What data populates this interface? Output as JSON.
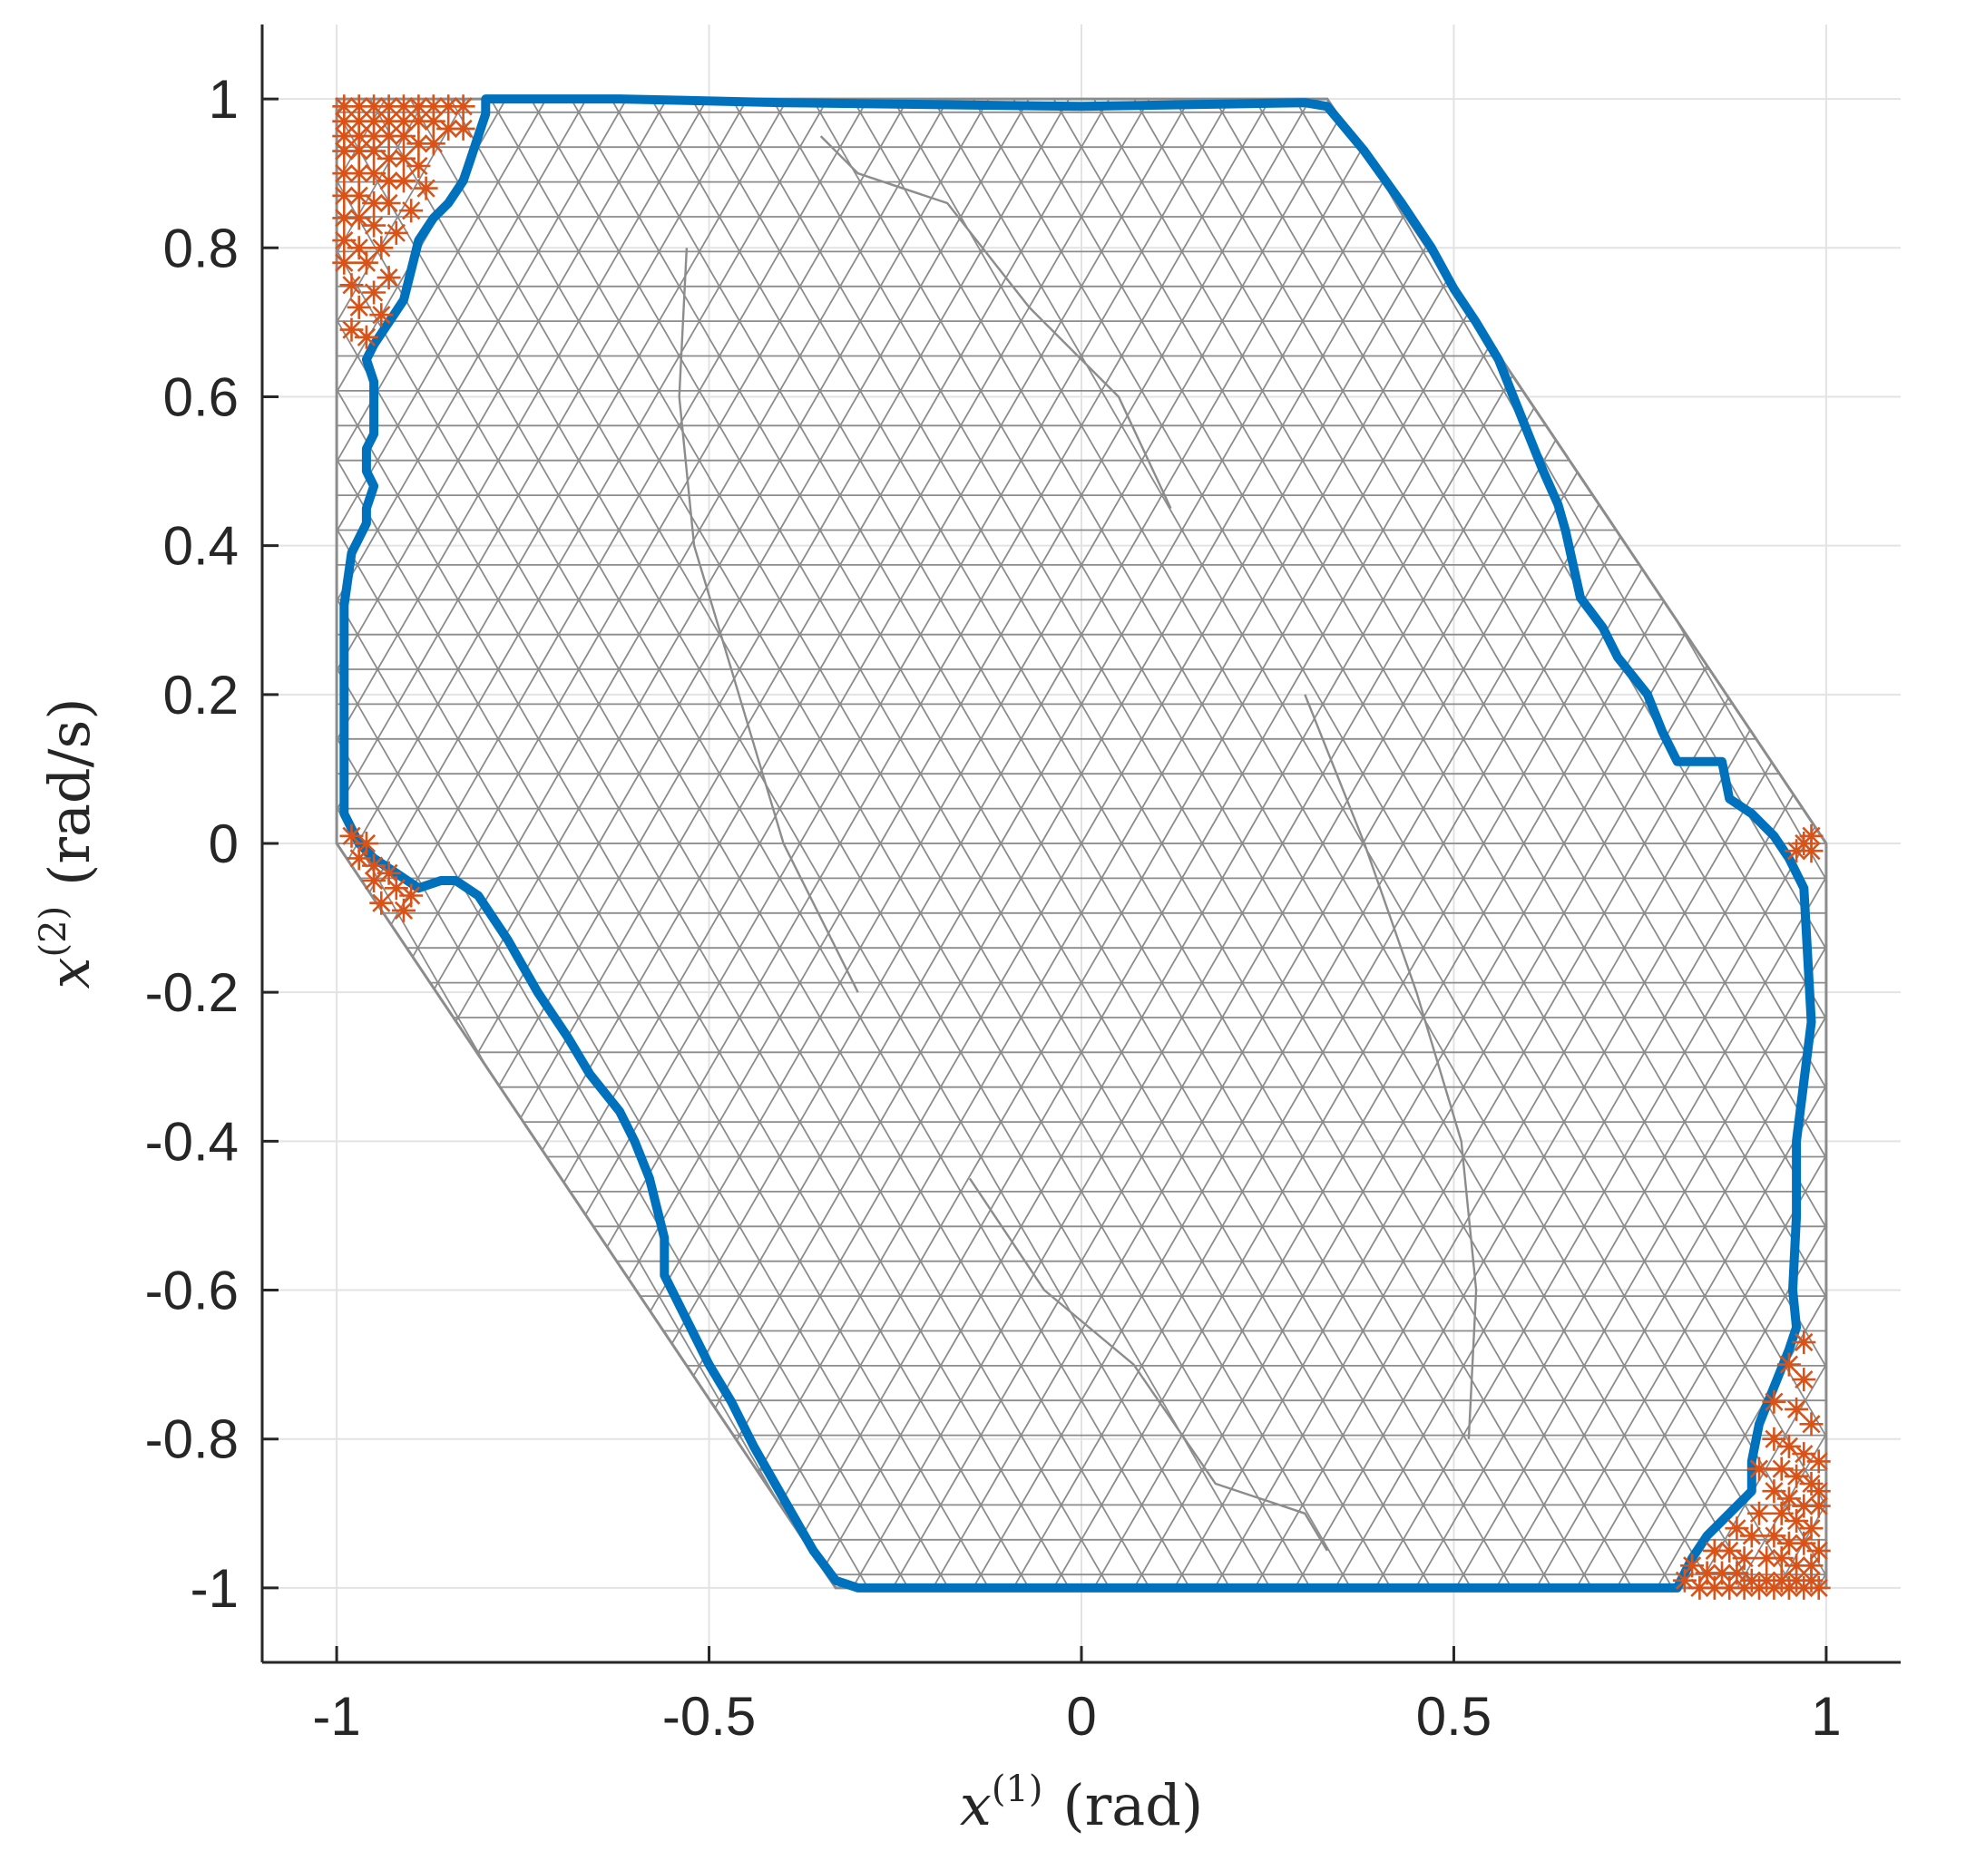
{
  "chart_data": {
    "type": "scatter",
    "xlabel": {
      "var": "x",
      "sup": "(1)",
      "unit": "(rad)"
    },
    "ylabel": {
      "var": "x",
      "sup": "(2)",
      "unit": "(rad/s)"
    },
    "xlim": [
      -1.1,
      1.1
    ],
    "ylim": [
      -1.1,
      1.1
    ],
    "xticks": [
      -1,
      -0.5,
      0,
      0.5,
      1
    ],
    "xtick_labels": [
      "-1",
      "-0.5",
      "0",
      "0.5",
      "1"
    ],
    "yticks": [
      1,
      0.8,
      0.6,
      0.4,
      0.2,
      0,
      -0.2,
      -0.4,
      -0.6,
      -0.8,
      -1
    ],
    "ytick_labels": [
      "1",
      "0.8",
      "0.6",
      "0.4",
      "0.2",
      "0",
      "-0.2",
      "-0.4",
      "-0.6",
      "-0.8",
      "-1"
    ],
    "grid": true,
    "colors": {
      "mesh": "#8c8c8c",
      "boundary": "#0072bd",
      "markers": "#d95319",
      "axis": "#262626",
      "grid": "#e3e3e3"
    },
    "mesh_region": [
      [
        -1,
        1
      ],
      [
        0.33,
        1
      ],
      [
        1,
        0
      ],
      [
        1,
        -1
      ],
      [
        -0.33,
        -1
      ],
      [
        -1,
        0
      ]
    ],
    "boundary": [
      [
        -0.8,
        1.0
      ],
      [
        -0.75,
        1.0
      ],
      [
        -0.62,
        1.0
      ],
      [
        -0.4,
        0.995
      ],
      [
        0.0,
        0.99
      ],
      [
        0.3,
        0.995
      ],
      [
        0.33,
        0.99
      ],
      [
        0.38,
        0.93
      ],
      [
        0.43,
        0.86
      ],
      [
        0.47,
        0.8
      ],
      [
        0.5,
        0.745
      ],
      [
        0.53,
        0.7
      ],
      [
        0.56,
        0.65
      ],
      [
        0.58,
        0.6
      ],
      [
        0.6,
        0.55
      ],
      [
        0.62,
        0.5
      ],
      [
        0.64,
        0.455
      ],
      [
        0.65,
        0.42
      ],
      [
        0.66,
        0.375
      ],
      [
        0.67,
        0.33
      ],
      [
        0.7,
        0.29
      ],
      [
        0.72,
        0.25
      ],
      [
        0.76,
        0.2
      ],
      [
        0.78,
        0.15
      ],
      [
        0.8,
        0.11
      ],
      [
        0.86,
        0.11
      ],
      [
        0.87,
        0.06
      ],
      [
        0.9,
        0.04
      ],
      [
        0.93,
        0.01
      ],
      [
        0.95,
        -0.02
      ],
      [
        0.97,
        -0.06
      ],
      [
        0.975,
        -0.15
      ],
      [
        0.98,
        -0.24
      ],
      [
        0.97,
        -0.32
      ],
      [
        0.96,
        -0.4
      ],
      [
        0.96,
        -0.5
      ],
      [
        0.955,
        -0.6
      ],
      [
        0.96,
        -0.65
      ],
      [
        0.95,
        -0.68
      ],
      [
        0.93,
        -0.73
      ],
      [
        0.91,
        -0.78
      ],
      [
        0.9,
        -0.83
      ],
      [
        0.9,
        -0.87
      ],
      [
        0.87,
        -0.9
      ],
      [
        0.84,
        -0.93
      ],
      [
        0.82,
        -0.96
      ],
      [
        0.8,
        -1.0
      ],
      [
        0.5,
        -1.0
      ],
      [
        0.0,
        -1.0
      ],
      [
        -0.3,
        -1.0
      ],
      [
        -0.33,
        -0.99
      ],
      [
        -0.36,
        -0.95
      ],
      [
        -0.4,
        -0.88
      ],
      [
        -0.44,
        -0.81
      ],
      [
        -0.47,
        -0.75
      ],
      [
        -0.5,
        -0.7
      ],
      [
        -0.53,
        -0.64
      ],
      [
        -0.56,
        -0.58
      ],
      [
        -0.56,
        -0.53
      ],
      [
        -0.58,
        -0.45
      ],
      [
        -0.6,
        -0.4
      ],
      [
        -0.62,
        -0.36
      ],
      [
        -0.66,
        -0.31
      ],
      [
        -0.69,
        -0.26
      ],
      [
        -0.73,
        -0.2
      ],
      [
        -0.77,
        -0.13
      ],
      [
        -0.81,
        -0.07
      ],
      [
        -0.84,
        -0.05
      ],
      [
        -0.86,
        -0.05
      ],
      [
        -0.89,
        -0.06
      ],
      [
        -0.92,
        -0.04
      ],
      [
        -0.95,
        -0.02
      ],
      [
        -0.97,
        0.0
      ],
      [
        -0.99,
        0.04
      ],
      [
        -0.99,
        0.12
      ],
      [
        -0.99,
        0.25
      ],
      [
        -0.99,
        0.32
      ],
      [
        -0.98,
        0.39
      ],
      [
        -0.96,
        0.43
      ],
      [
        -0.96,
        0.45
      ],
      [
        -0.95,
        0.48
      ],
      [
        -0.96,
        0.5
      ],
      [
        -0.96,
        0.53
      ],
      [
        -0.95,
        0.55
      ],
      [
        -0.95,
        0.6
      ],
      [
        -0.95,
        0.62
      ],
      [
        -0.96,
        0.65
      ],
      [
        -0.95,
        0.67
      ],
      [
        -0.93,
        0.7
      ],
      [
        -0.91,
        0.73
      ],
      [
        -0.9,
        0.77
      ],
      [
        -0.89,
        0.81
      ],
      [
        -0.87,
        0.84
      ],
      [
        -0.85,
        0.86
      ],
      [
        -0.83,
        0.89
      ],
      [
        -0.82,
        0.92
      ],
      [
        -0.81,
        0.95
      ],
      [
        -0.8,
        0.98
      ],
      [
        -0.8,
        1.0
      ]
    ],
    "markers": [
      [
        -0.99,
        0.99
      ],
      [
        -0.97,
        0.99
      ],
      [
        -0.95,
        0.99
      ],
      [
        -0.93,
        0.99
      ],
      [
        -0.91,
        0.99
      ],
      [
        -0.89,
        0.99
      ],
      [
        -0.87,
        0.99
      ],
      [
        -0.85,
        0.99
      ],
      [
        -0.83,
        0.99
      ],
      [
        -0.99,
        0.97
      ],
      [
        -0.97,
        0.97
      ],
      [
        -0.95,
        0.97
      ],
      [
        -0.93,
        0.97
      ],
      [
        -0.91,
        0.97
      ],
      [
        -0.89,
        0.97
      ],
      [
        -0.87,
        0.97
      ],
      [
        -0.85,
        0.96
      ],
      [
        -0.83,
        0.96
      ],
      [
        -0.99,
        0.95
      ],
      [
        -0.97,
        0.95
      ],
      [
        -0.95,
        0.95
      ],
      [
        -0.93,
        0.95
      ],
      [
        -0.91,
        0.95
      ],
      [
        -0.89,
        0.94
      ],
      [
        -0.87,
        0.94
      ],
      [
        -0.99,
        0.93
      ],
      [
        -0.97,
        0.93
      ],
      [
        -0.95,
        0.93
      ],
      [
        -0.93,
        0.92
      ],
      [
        -0.91,
        0.92
      ],
      [
        -0.89,
        0.91
      ],
      [
        -0.99,
        0.9
      ],
      [
        -0.97,
        0.9
      ],
      [
        -0.95,
        0.9
      ],
      [
        -0.93,
        0.89
      ],
      [
        -0.91,
        0.89
      ],
      [
        -0.88,
        0.88
      ],
      [
        -0.99,
        0.87
      ],
      [
        -0.97,
        0.87
      ],
      [
        -0.95,
        0.86
      ],
      [
        -0.93,
        0.86
      ],
      [
        -0.9,
        0.85
      ],
      [
        -0.99,
        0.84
      ],
      [
        -0.97,
        0.84
      ],
      [
        -0.95,
        0.83
      ],
      [
        -0.92,
        0.82
      ],
      [
        -0.99,
        0.81
      ],
      [
        -0.97,
        0.8
      ],
      [
        -0.94,
        0.8
      ],
      [
        -0.99,
        0.78
      ],
      [
        -0.96,
        0.78
      ],
      [
        -0.93,
        0.76
      ],
      [
        -0.98,
        0.75
      ],
      [
        -0.95,
        0.74
      ],
      [
        -0.97,
        0.72
      ],
      [
        -0.94,
        0.71
      ],
      [
        -0.98,
        0.69
      ],
      [
        -0.96,
        0.68
      ],
      [
        -0.98,
        0.01
      ],
      [
        -0.96,
        0.0
      ],
      [
        -0.97,
        -0.02
      ],
      [
        -0.95,
        -0.03
      ],
      [
        -0.93,
        -0.04
      ],
      [
        -0.95,
        -0.05
      ],
      [
        -0.92,
        -0.06
      ],
      [
        -0.9,
        -0.07
      ],
      [
        -0.94,
        -0.08
      ],
      [
        -0.91,
        -0.09
      ],
      [
        0.97,
        0.0
      ],
      [
        0.98,
        -0.01
      ],
      [
        0.96,
        -0.01
      ],
      [
        0.98,
        0.01
      ],
      [
        0.97,
        -0.67
      ],
      [
        0.95,
        -0.7
      ],
      [
        0.97,
        -0.72
      ],
      [
        0.93,
        -0.75
      ],
      [
        0.96,
        -0.76
      ],
      [
        0.98,
        -0.78
      ],
      [
        0.93,
        -0.8
      ],
      [
        0.95,
        -0.81
      ],
      [
        0.97,
        -0.82
      ],
      [
        0.99,
        -0.83
      ],
      [
        0.91,
        -0.84
      ],
      [
        0.94,
        -0.84
      ],
      [
        0.96,
        -0.85
      ],
      [
        0.98,
        -0.86
      ],
      [
        0.99,
        -0.87
      ],
      [
        0.93,
        -0.87
      ],
      [
        0.95,
        -0.88
      ],
      [
        0.97,
        -0.89
      ],
      [
        0.99,
        -0.89
      ],
      [
        0.91,
        -0.9
      ],
      [
        0.94,
        -0.9
      ],
      [
        0.96,
        -0.91
      ],
      [
        0.98,
        -0.92
      ],
      [
        0.88,
        -0.92
      ],
      [
        0.9,
        -0.93
      ],
      [
        0.93,
        -0.93
      ],
      [
        0.95,
        -0.94
      ],
      [
        0.97,
        -0.94
      ],
      [
        0.99,
        -0.95
      ],
      [
        0.85,
        -0.95
      ],
      [
        0.87,
        -0.95
      ],
      [
        0.89,
        -0.96
      ],
      [
        0.92,
        -0.96
      ],
      [
        0.94,
        -0.96
      ],
      [
        0.96,
        -0.97
      ],
      [
        0.98,
        -0.97
      ],
      [
        0.82,
        -0.97
      ],
      [
        0.84,
        -0.98
      ],
      [
        0.86,
        -0.98
      ],
      [
        0.88,
        -0.98
      ],
      [
        0.9,
        -0.99
      ],
      [
        0.92,
        -0.99
      ],
      [
        0.94,
        -0.99
      ],
      [
        0.96,
        -0.99
      ],
      [
        0.98,
        -0.99
      ],
      [
        0.81,
        -0.99
      ],
      [
        0.83,
        -1.0
      ],
      [
        0.85,
        -1.0
      ],
      [
        0.87,
        -1.0
      ],
      [
        0.89,
        -1.0
      ],
      [
        0.91,
        -1.0
      ],
      [
        0.93,
        -1.0
      ],
      [
        0.95,
        -1.0
      ],
      [
        0.97,
        -1.0
      ],
      [
        0.99,
        -1.0
      ]
    ]
  }
}
